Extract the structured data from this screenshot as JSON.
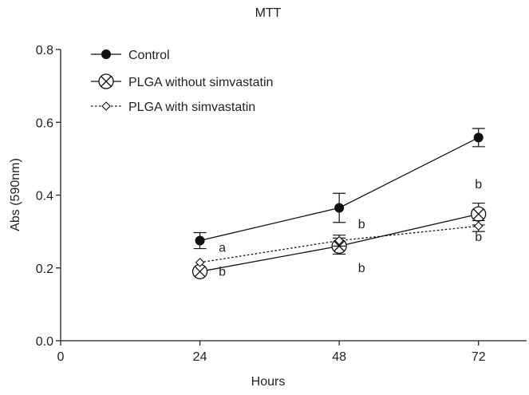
{
  "chart_data": {
    "type": "line",
    "title": "MTT",
    "xlabel": "Hours",
    "ylabel": "Abs (590nm)",
    "xlim": [
      0,
      84
    ],
    "ylim": [
      0,
      0.8
    ],
    "x_ticks": [
      0,
      24,
      48,
      72
    ],
    "x_tick_labels": [
      "0",
      "24",
      "48",
      "72"
    ],
    "y_ticks": [
      0,
      0.2,
      0.4,
      0.6,
      0.8
    ],
    "y_tick_labels": [
      "0.0",
      "0.2",
      "0.4",
      "0.6",
      "0.8"
    ],
    "grid": false,
    "legend_position": "top-left",
    "series": [
      {
        "name": "Control",
        "marker": "filled-circle",
        "line": "solid",
        "x": [
          24,
          48,
          72
        ],
        "y": [
          0.275,
          0.365,
          0.558
        ],
        "err": [
          0.022,
          0.04,
          0.025
        ]
      },
      {
        "name": "PLGA without simvastatin",
        "marker": "circled-x",
        "line": "solid",
        "x": [
          24,
          48,
          72
        ],
        "y": [
          0.19,
          0.26,
          0.348
        ],
        "err": [
          0.0,
          0.022,
          0.03
        ]
      },
      {
        "name": "PLGA with simvastatin",
        "marker": "open-diamond",
        "line": "dotted",
        "x": [
          24,
          48,
          72
        ],
        "y": [
          0.215,
          0.275,
          0.315
        ],
        "err": [
          0.0,
          0.015,
          0.015
        ]
      }
    ],
    "annotations": [
      {
        "text": "a",
        "x": 24,
        "y": 0.275,
        "anchor": "lower-right"
      },
      {
        "text": "b",
        "x": 24,
        "y": 0.19,
        "anchor": "right"
      },
      {
        "text": "b",
        "x": 48,
        "y": 0.32,
        "anchor": "right"
      },
      {
        "text": "b",
        "x": 48,
        "y": 0.2,
        "anchor": "right"
      },
      {
        "text": "b",
        "x": 72,
        "y": 0.43,
        "anchor": "center"
      },
      {
        "text": "b",
        "x": 72,
        "y": 0.285,
        "anchor": "center"
      }
    ]
  }
}
